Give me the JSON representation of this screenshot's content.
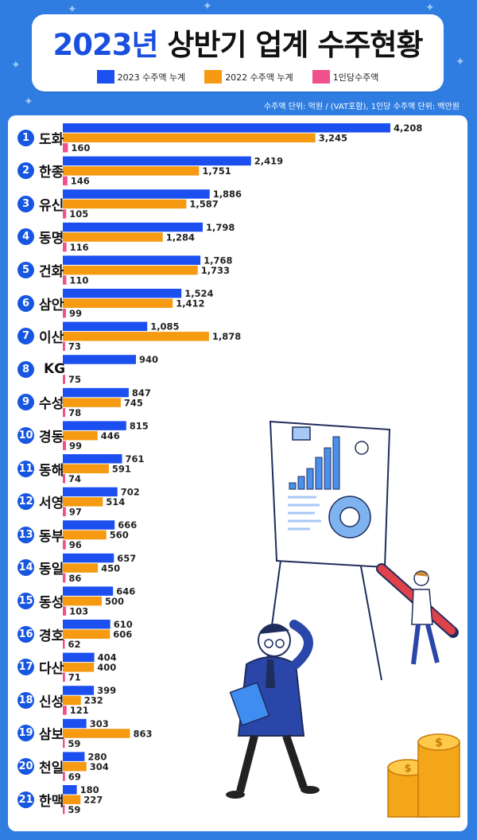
{
  "title": {
    "year": "2023년",
    "rest": "상반기 업계 수주현황"
  },
  "legend": [
    {
      "label": "2023 수주액 누계",
      "color": "#1b4ff0"
    },
    {
      "label": "2022 수주액 누계",
      "color": "#f59a11"
    },
    {
      "label": "1인당수주액",
      "color": "#f0508d"
    }
  ],
  "unit_note": "수주액 단위: 억원  / (VAT포함),   1인당 수주액 단위: 백만원",
  "chart_data": {
    "type": "bar",
    "orientation": "horizontal",
    "title": "2023년 상반기 업계 수주현황",
    "categories": [
      "도화",
      "한종",
      "유신",
      "동명",
      "건화",
      "삼안",
      "이산",
      "KG",
      "수성",
      "경동",
      "동해",
      "서영",
      "동부",
      "동일",
      "동성",
      "경호",
      "다산",
      "신성",
      "삼보",
      "천일",
      "한맥"
    ],
    "ranks": [
      "1",
      "2",
      "3",
      "4",
      "5",
      "6",
      "7",
      "8",
      "9",
      "10",
      "11",
      "12",
      "13",
      "14",
      "15",
      "16",
      "17",
      "18",
      "19",
      "20",
      "21"
    ],
    "series": [
      {
        "name": "2023 수주액 누계",
        "color": "#1b4ff0",
        "values": [
          4208,
          2419,
          1886,
          1798,
          1768,
          1524,
          1085,
          940,
          847,
          815,
          761,
          702,
          666,
          657,
          646,
          610,
          404,
          399,
          303,
          280,
          180
        ],
        "labels": [
          "4,208",
          "2,419",
          "1,886",
          "1,798",
          "1,768",
          "1,524",
          "1,085",
          "940",
          "847",
          "815",
          "761",
          "702",
          "666",
          "657",
          "646",
          "610",
          "404",
          "399",
          "303",
          "280",
          "180"
        ]
      },
      {
        "name": "2022 수주액 누계",
        "color": "#f59a11",
        "values": [
          3245,
          1751,
          1587,
          1284,
          1733,
          1412,
          1878,
          null,
          745,
          446,
          591,
          514,
          560,
          450,
          500,
          606,
          400,
          232,
          863,
          304,
          227
        ],
        "labels": [
          "3,245",
          "1,751",
          "1,587",
          "1,284",
          "1,733",
          "1,412",
          "1,878",
          "",
          "745",
          "446",
          "591",
          "514",
          "560",
          "450",
          "500",
          "606",
          "400",
          "232",
          "863",
          "304",
          "227"
        ]
      },
      {
        "name": "1인당수주액",
        "color": "#f0508d",
        "unit": "백만원",
        "values": [
          160,
          146,
          105,
          116,
          110,
          99,
          73,
          75,
          78,
          99,
          74,
          97,
          96,
          86,
          103,
          62,
          71,
          121,
          59,
          69,
          59
        ],
        "labels": [
          "160",
          "146",
          "105",
          "116",
          "110",
          "99",
          "73",
          "75",
          "78",
          "99",
          "74",
          "97",
          "96",
          "86",
          "103",
          "62",
          "71",
          "121",
          "59",
          "69",
          "59"
        ]
      }
    ],
    "xlabel": "",
    "ylabel": "",
    "units": {
      "amount": "억원",
      "per_person": "백만원"
    }
  }
}
